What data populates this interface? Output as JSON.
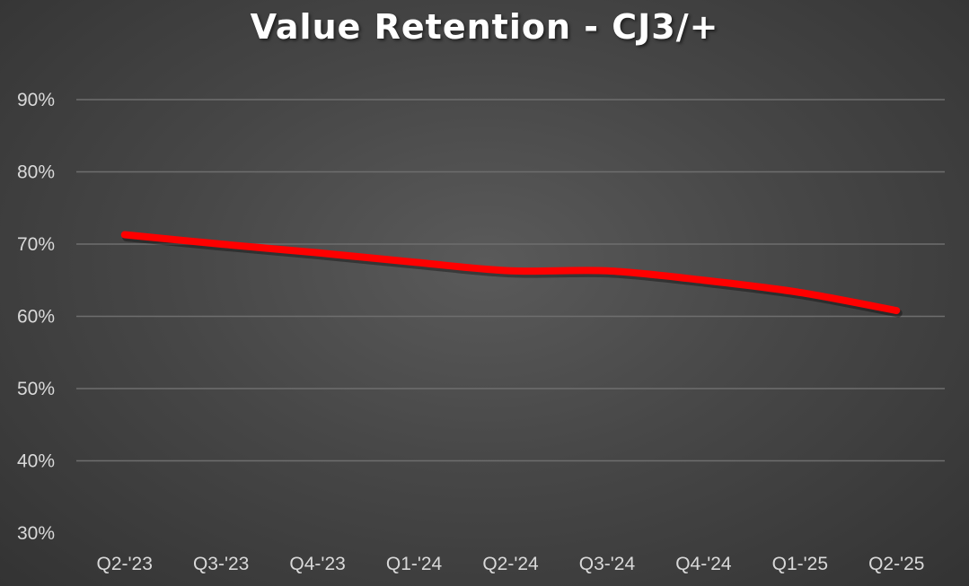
{
  "chart_data": {
    "type": "line",
    "title": "Value Retention - CJ3/+",
    "xlabel": "",
    "ylabel": "",
    "categories": [
      "Q2-'23",
      "Q3-'23",
      "Q4-'23",
      "Q1-'24",
      "Q2-'24",
      "Q3-'24",
      "Q4-'24",
      "Q1-'25",
      "Q2-'25"
    ],
    "series": [
      {
        "values": [
          71.3,
          70.0,
          68.8,
          67.5,
          66.3,
          66.3,
          65.0,
          63.3,
          60.8
        ]
      }
    ],
    "ylim": [
      30,
      90
    ],
    "yticks": [
      90,
      80,
      70,
      60,
      50,
      40,
      30
    ],
    "ytick_format": "%",
    "grid": true,
    "legend": "none",
    "colors": {
      "line": "#ff0000",
      "grid": "#6e6e6e",
      "tick_text": "#d9d9d9",
      "title_text": "#ffffff"
    }
  }
}
